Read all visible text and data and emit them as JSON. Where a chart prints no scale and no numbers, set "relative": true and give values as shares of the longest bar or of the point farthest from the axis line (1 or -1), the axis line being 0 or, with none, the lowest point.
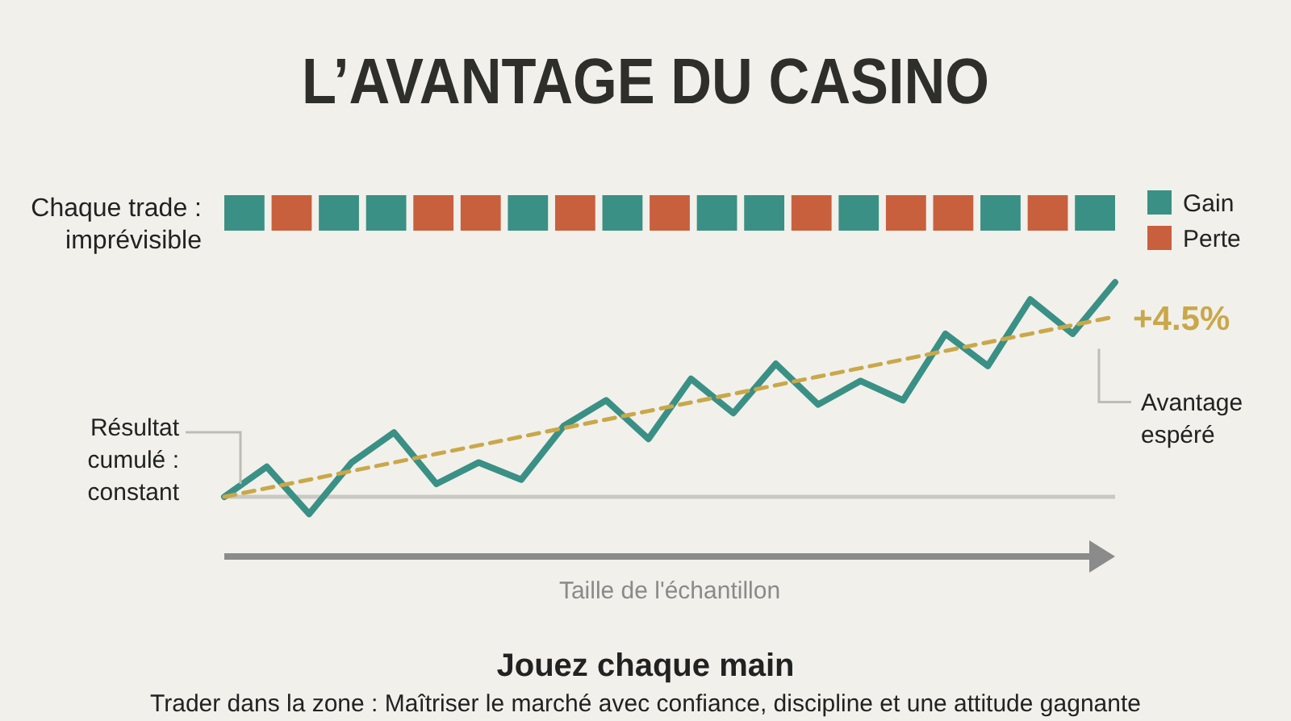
{
  "chart_data": [
    {
      "type": "bar",
      "title": "L’AVANTAGE DU CASINO",
      "ylabel": "Chaque trade :\nimprévisible",
      "relative": true,
      "stacked": true,
      "legend": "right",
      "tick_labels": false,
      "categories": [
        null,
        null,
        null,
        null,
        null,
        null,
        null,
        null,
        null,
        null,
        null,
        null,
        null,
        null,
        null,
        null,
        null,
        null,
        null
      ],
      "series": [
        {
          "name": "Gain",
          "color": "#3a9085",
          "values": [
            1,
            null,
            1,
            1,
            null,
            null,
            1,
            null,
            1,
            null,
            1,
            1,
            null,
            1,
            null,
            null,
            1,
            null,
            1
          ]
        },
        {
          "name": "Perte",
          "color": "#c8603e",
          "values": [
            null,
            1,
            null,
            null,
            1,
            1,
            null,
            1,
            null,
            1,
            null,
            null,
            1,
            null,
            1,
            1,
            null,
            1,
            null
          ]
        }
      ]
    },
    {
      "type": "line",
      "relative": true,
      "xlabel": "Taille de l'échantillon",
      "tick_labels": false,
      "categories": [
        null,
        null,
        null,
        null,
        null,
        null,
        null,
        null,
        null,
        null,
        null,
        null,
        null,
        null,
        null,
        null,
        null,
        null,
        null,
        null,
        null,
        null
      ],
      "series": [
        {
          "color": "#3a9085",
          "values": [
            0,
            0.14,
            -0.08,
            0.16,
            0.3,
            0.06,
            0.16,
            0.08,
            0.33,
            0.45,
            0.27,
            0.55,
            0.39,
            0.62,
            0.43,
            0.54,
            0.45,
            0.76,
            0.61,
            0.92,
            0.76,
            1
          ]
        },
        {
          "color": "#c9a84a",
          "line_style": "dashed",
          "values": [
            0,
            0.04,
            0.08,
            0.12,
            0.16,
            0.2,
            0.24,
            0.28,
            0.32,
            0.36,
            0.4,
            0.44,
            0.48,
            0.52,
            0.56,
            0.6,
            0.64,
            0.68,
            0.72,
            0.76,
            0.8,
            0.84
          ]
        }
      ],
      "annotations": [
        "+4.5%",
        "Avantage espéré",
        "Résultat cumulé : constant",
        "Jouez chaque main",
        "Trader dans la zone : Maîtriser le marché avec confiance, discipline et une attitude gagnante"
      ]
    }
  ]
}
